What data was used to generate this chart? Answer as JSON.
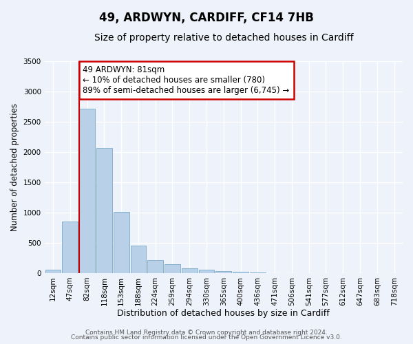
{
  "title": "49, ARDWYN, CARDIFF, CF14 7HB",
  "subtitle": "Size of property relative to detached houses in Cardiff",
  "xlabel": "Distribution of detached houses by size in Cardiff",
  "ylabel": "Number of detached properties",
  "categories": [
    "12sqm",
    "47sqm",
    "82sqm",
    "118sqm",
    "153sqm",
    "188sqm",
    "224sqm",
    "259sqm",
    "294sqm",
    "330sqm",
    "365sqm",
    "400sqm",
    "436sqm",
    "471sqm",
    "506sqm",
    "541sqm",
    "577sqm",
    "612sqm",
    "647sqm",
    "683sqm",
    "718sqm"
  ],
  "values": [
    60,
    850,
    2720,
    2070,
    1010,
    450,
    210,
    145,
    75,
    55,
    30,
    20,
    15,
    5,
    0,
    0,
    0,
    0,
    0,
    0,
    0
  ],
  "bar_color": "#b8d0e8",
  "bar_edge_color": "#7aaac8",
  "vline_x_index": 2,
  "annotation_line1": "49 ARDWYN: 81sqm",
  "annotation_line2": "← 10% of detached houses are smaller (780)",
  "annotation_line3": "89% of semi-detached houses are larger (6,745) →",
  "annotation_box_color": "#ffffff",
  "annotation_box_edge": "#cc0000",
  "vline_color": "#cc0000",
  "ylim": [
    0,
    3500
  ],
  "yticks": [
    0,
    500,
    1000,
    1500,
    2000,
    2500,
    3000,
    3500
  ],
  "background_color": "#eef2fa",
  "grid_color": "#ffffff",
  "footer_line1": "Contains HM Land Registry data © Crown copyright and database right 2024.",
  "footer_line2": "Contains public sector information licensed under the Open Government Licence v3.0.",
  "title_fontsize": 12,
  "subtitle_fontsize": 10,
  "xlabel_fontsize": 9,
  "ylabel_fontsize": 8.5,
  "tick_fontsize": 7.5,
  "annotation_fontsize": 8.5,
  "footer_fontsize": 6.5
}
